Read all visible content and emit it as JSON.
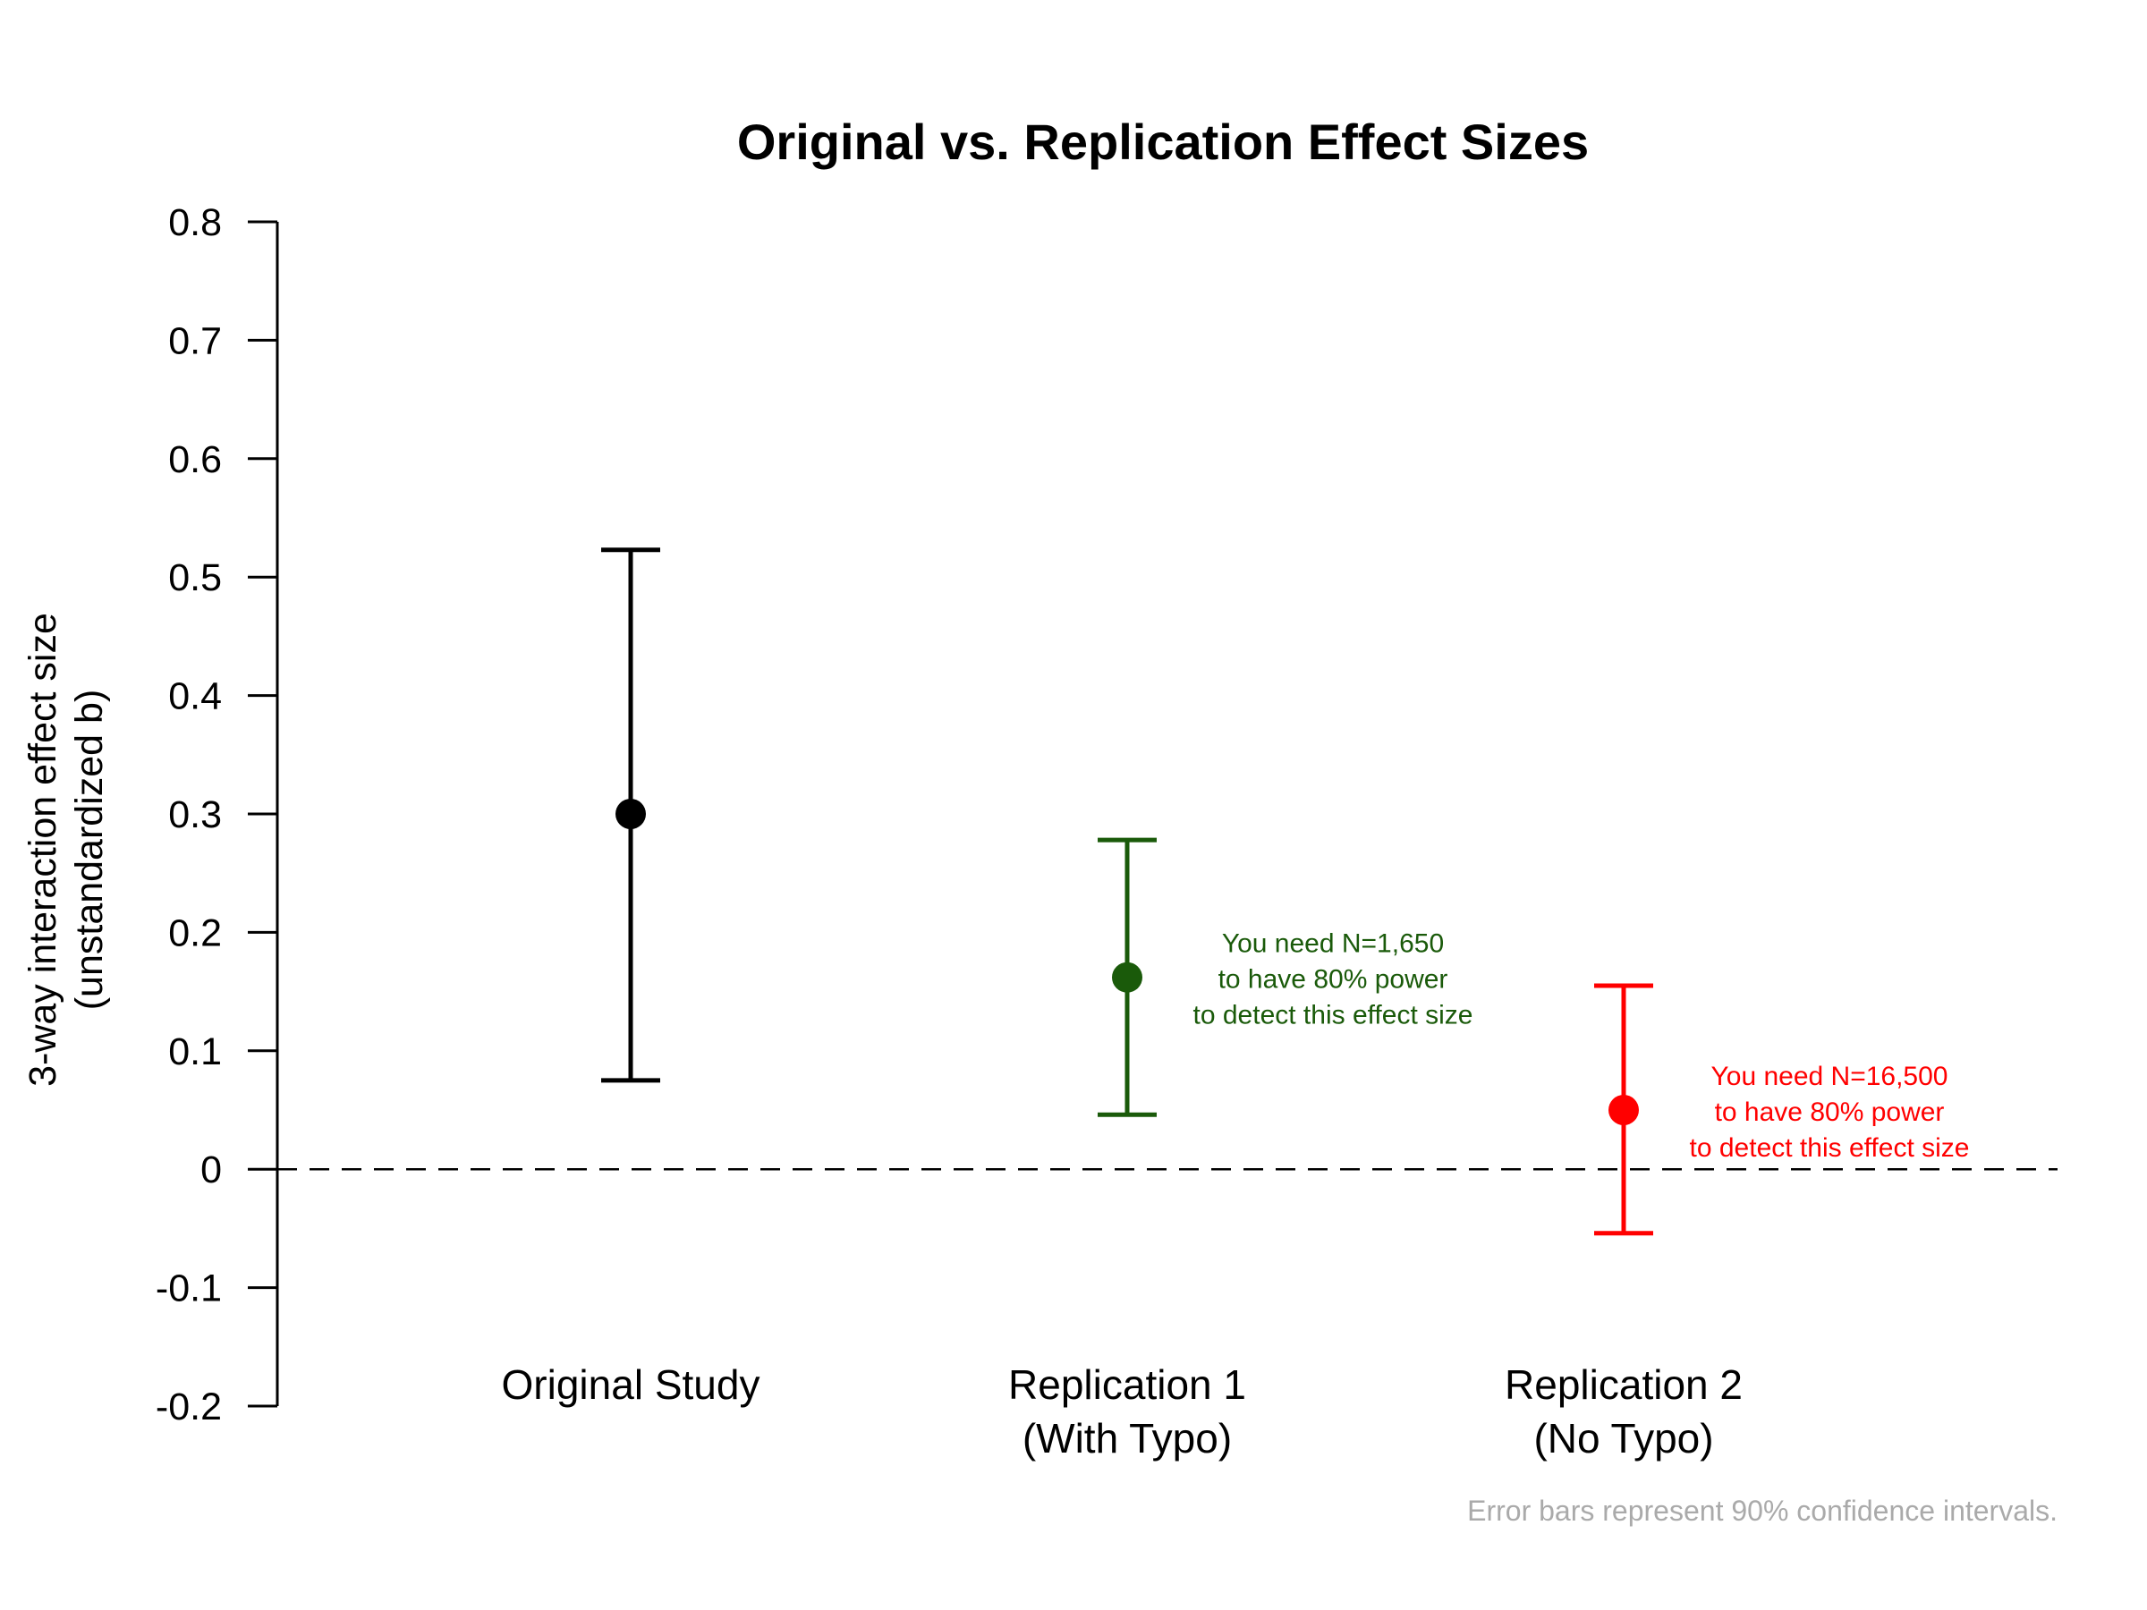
{
  "chart_data": {
    "type": "scatter",
    "title": "Original vs. Replication Effect Sizes",
    "ylabel": [
      "3-way interaction effect size",
      "(unstandardized b)"
    ],
    "ylim": [
      -0.2,
      0.8
    ],
    "yticks": [
      -0.2,
      -0.1,
      0,
      0.1,
      0.2,
      0.3,
      0.4,
      0.5,
      0.6,
      0.7,
      0.8
    ],
    "ytick_labels": [
      "-0.2",
      "-0.1",
      "0",
      "0.1",
      "0.2",
      "0.3",
      "0.4",
      "0.5",
      "0.6",
      "0.7",
      "0.8"
    ],
    "reference_line": {
      "y": 0,
      "style": "dashed"
    },
    "grid": false,
    "points": [
      {
        "label": [
          "Original Study"
        ],
        "estimate": 0.3,
        "ci_low": 0.075,
        "ci_high": 0.523,
        "color": "#000000",
        "annotation": []
      },
      {
        "label": [
          "Replication 1",
          "(With Typo)"
        ],
        "estimate": 0.162,
        "ci_low": 0.046,
        "ci_high": 0.278,
        "color": "#1a5a0a",
        "annotation": [
          "You need N=1,650",
          "to have 80% power",
          "to detect this effect size"
        ]
      },
      {
        "label": [
          "Replication 2",
          "(No Typo)"
        ],
        "estimate": 0.05,
        "ci_low": -0.054,
        "ci_high": 0.155,
        "color": "#ff0000",
        "annotation": [
          "You need N=16,500",
          "to have 80% power",
          "to detect this effect size"
        ]
      }
    ],
    "footnote": "Error bars represent 90% confidence intervals."
  }
}
